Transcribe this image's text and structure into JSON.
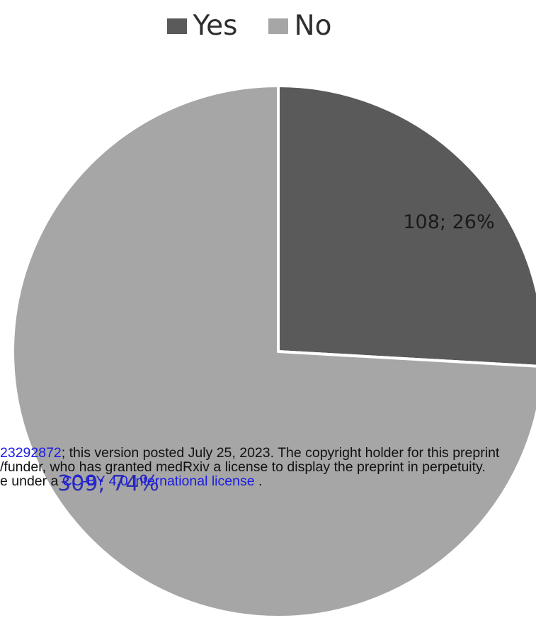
{
  "chart_data": {
    "type": "pie",
    "categories": [
      "Yes",
      "No"
    ],
    "values": [
      108,
      309
    ],
    "percents": [
      26,
      74
    ],
    "data_labels": [
      "108; 26%",
      "309; 74%"
    ],
    "colors": [
      "#5a5a5a",
      "#a6a6a6"
    ],
    "legend_position": "top",
    "start_angle": "12 o'clock, clockwise"
  },
  "legend": {
    "items": [
      {
        "label": "Yes",
        "color": "#5a5a5a"
      },
      {
        "label": "No",
        "color": "#a6a6a6"
      }
    ]
  },
  "watermark": {
    "line1_link": "23292872",
    "line1_text": "; this version posted July 25, 2023. The copyright holder for this preprint",
    "line2_text": "/funder, who has granted medRxiv a license to display the preprint in perpetuity.",
    "line3_prefix": "e under a ",
    "line3_link": "CC-BY 4.0 International license",
    "line3_suffix": " ."
  }
}
